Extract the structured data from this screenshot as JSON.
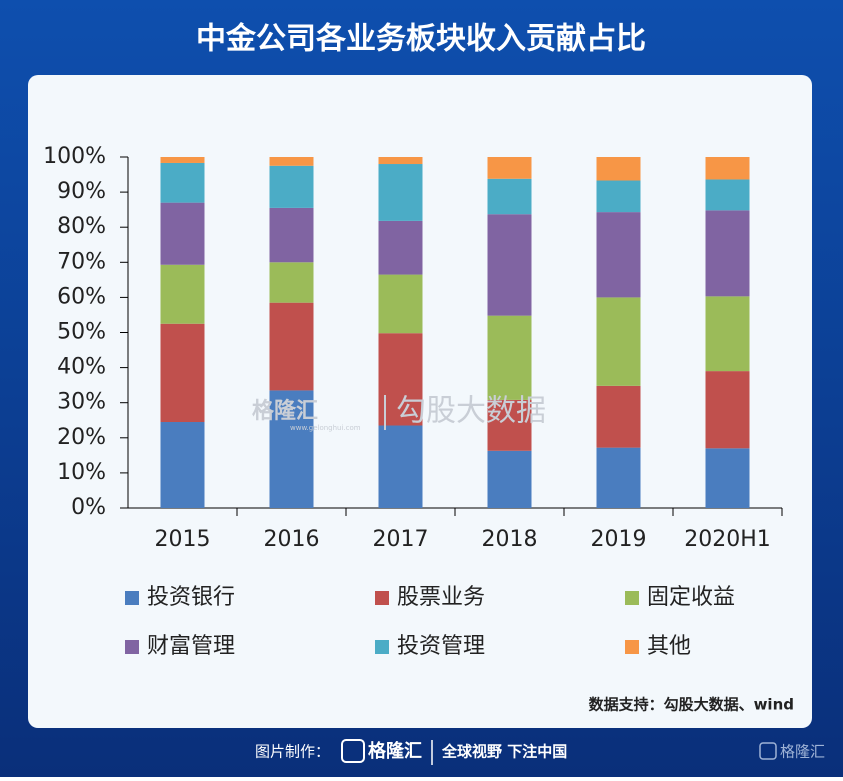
{
  "chart_data": {
    "type": "stacked_bar",
    "title": "中金公司各业务板块收入贡献占比",
    "categories": [
      "2015",
      "2016",
      "2017",
      "2018",
      "2019",
      "2020H1"
    ],
    "series": [
      {
        "name": "投资银行",
        "color": "#4a7dbf",
        "values": [
          24.5,
          33.5,
          23.5,
          16.3,
          17.2,
          17
        ]
      },
      {
        "name": "股票业务",
        "color": "#c0504d",
        "values": [
          28,
          25,
          26.3,
          14.5,
          17.6,
          22
        ]
      },
      {
        "name": "固定收益",
        "color": "#9bbb59",
        "values": [
          16.8,
          11.5,
          16.7,
          24,
          25.2,
          21.3
        ]
      },
      {
        "name": "财富管理",
        "color": "#8064a2",
        "values": [
          17.7,
          15.5,
          15.3,
          28.9,
          24.3,
          24.5
        ]
      },
      {
        "name": "投资管理",
        "color": "#4bacc6",
        "values": [
          11.3,
          12,
          16.2,
          10.1,
          9,
          8.8
        ]
      },
      {
        "name": "其他",
        "color": "#f79646",
        "values": [
          1.7,
          2.5,
          2,
          6.2,
          6.7,
          6.4
        ]
      }
    ],
    "ylim": [
      0,
      100
    ],
    "yticks": [
      {
        "value": 0,
        "label": "0%"
      },
      {
        "value": 10,
        "label": "10%"
      },
      {
        "value": 20,
        "label": "20%"
      },
      {
        "value": 30,
        "label": "30%"
      },
      {
        "value": 40,
        "label": "40%"
      },
      {
        "value": 50,
        "label": "50%"
      },
      {
        "value": 60,
        "label": "60%"
      },
      {
        "value": 70,
        "label": "70%"
      },
      {
        "value": 80,
        "label": "80%"
      },
      {
        "value": 90,
        "label": "90%"
      },
      {
        "value": 100,
        "label": "100%"
      }
    ],
    "source": "数据支持：勾股大数据、wind"
  },
  "watermark": {
    "logo": "格隆汇",
    "site": "www.gelonghui.com",
    "text": "勾股大数据"
  },
  "footer": {
    "credit": "图片制作：",
    "logo": "格隆汇",
    "slogan": "全球视野 下注中国",
    "corner_logo": "格隆汇"
  }
}
